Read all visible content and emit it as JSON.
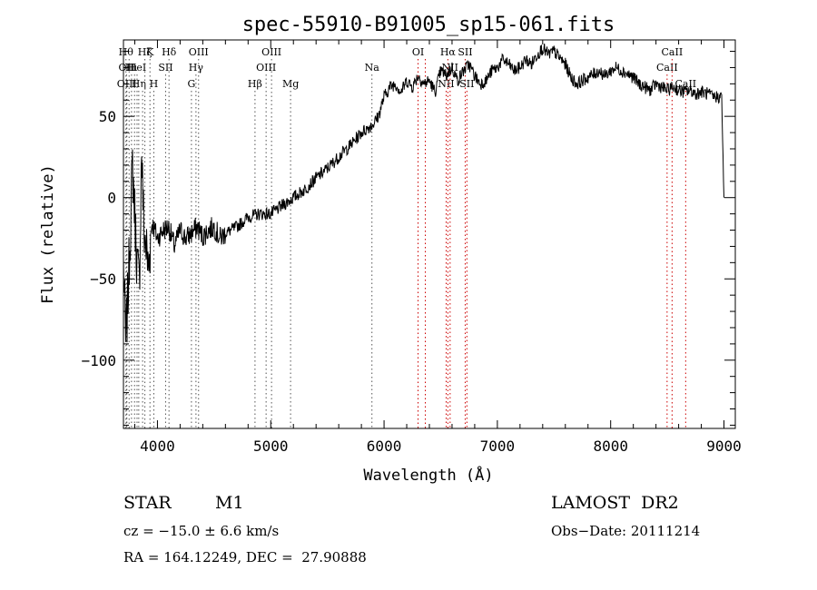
{
  "chart_data": {
    "type": "line",
    "title": "spec-55910-B91005_sp15-061.fits",
    "xlabel": "Wavelength (Å)",
    "ylabel": "Flux (relative)",
    "xlim": [
      3700,
      9100
    ],
    "ylim": [
      -142,
      97
    ],
    "xticks": [
      4000,
      5000,
      6000,
      7000,
      8000,
      9000
    ],
    "yticks": [
      -100,
      -50,
      0,
      50
    ],
    "grid": false,
    "line_color": "#000000",
    "marker_color": "#cc0000",
    "series": [
      {
        "values_x": [
          3700,
          3720,
          3740,
          3760,
          3780,
          3800,
          3820,
          3840,
          3860,
          3880,
          3900,
          3920,
          3950,
          4000,
          4050,
          4100,
          4150,
          4200,
          4250,
          4300,
          4350,
          4400,
          4450,
          4500,
          4550,
          4600,
          4700,
          4800,
          4900,
          5000,
          5100,
          5200,
          5300,
          5400,
          5500,
          5600,
          5700,
          5800,
          5900,
          5950,
          6000,
          6050,
          6100,
          6150,
          6200,
          6250,
          6300,
          6350,
          6400,
          6450,
          6500,
          6550,
          6600,
          6650,
          6700,
          6750,
          6800,
          6850,
          6900,
          6950,
          7000,
          7050,
          7100,
          7150,
          7200,
          7250,
          7300,
          7350,
          7400,
          7450,
          7500,
          7550,
          7600,
          7650,
          7700,
          7750,
          7800,
          7850,
          7900,
          7950,
          8000,
          8050,
          8100,
          8150,
          8200,
          8250,
          8300,
          8350,
          8400,
          8450,
          8500,
          8550,
          8600,
          8650,
          8700,
          8750,
          8800,
          8850,
          8900,
          8950,
          8980,
          9000
        ],
        "values_y": [
          -40,
          -90,
          -60,
          -20,
          20,
          -10,
          -40,
          -55,
          30,
          -20,
          -30,
          -45,
          -15,
          -25,
          -20,
          -18,
          -30,
          -20,
          -25,
          -22,
          -18,
          -24,
          -20,
          -18,
          -25,
          -22,
          -18,
          -12,
          -10,
          -10,
          -5,
          0,
          5,
          12,
          18,
          25,
          32,
          40,
          45,
          50,
          62,
          68,
          70,
          65,
          72,
          68,
          75,
          70,
          72,
          65,
          78,
          75,
          80,
          72,
          78,
          82,
          75,
          70,
          72,
          78,
          80,
          85,
          82,
          78,
          80,
          85,
          82,
          88,
          92,
          88,
          90,
          86,
          82,
          74,
          70,
          72,
          74,
          76,
          78,
          75,
          78,
          80,
          78,
          76,
          74,
          70,
          68,
          66,
          70,
          68,
          66,
          68,
          66,
          65,
          66,
          64,
          65,
          64,
          62,
          62,
          62,
          0
        ]
      }
    ],
    "line_markers": [
      {
        "x": 3722,
        "label": "Hθ",
        "row": 0
      },
      {
        "x": 3727,
        "label": "OII",
        "row": 1
      },
      {
        "x": 3730,
        "label": "OIII",
        "row": 2
      },
      {
        "x": 3750,
        "label": "",
        "row": 0
      },
      {
        "x": 3771,
        "label": "Hι",
        "row": 1
      },
      {
        "x": 3798,
        "label": "",
        "row": 1
      },
      {
        "x": 3820,
        "label": "HeI",
        "row": 1
      },
      {
        "x": 3835,
        "label": "Hη",
        "row": 2
      },
      {
        "x": 3869,
        "label": "",
        "row": 2
      },
      {
        "x": 3889,
        "label": "Hζ",
        "row": 0
      },
      {
        "x": 3934,
        "label": "K",
        "row": 0
      },
      {
        "x": 3968,
        "label": "H",
        "row": 2
      },
      {
        "x": 4072,
        "label": "SII",
        "row": 1
      },
      {
        "x": 4102,
        "label": "Hδ",
        "row": 0
      },
      {
        "x": 4300,
        "label": "G",
        "row": 2
      },
      {
        "x": 4340,
        "label": "Hγ",
        "row": 1
      },
      {
        "x": 4363,
        "label": "OIII",
        "row": 0
      },
      {
        "x": 4861,
        "label": "Hβ",
        "row": 2
      },
      {
        "x": 4959,
        "label": "OIII",
        "row": 1
      },
      {
        "x": 5007,
        "label": "OIII",
        "row": 0
      },
      {
        "x": 5175,
        "label": "Mg",
        "row": 2
      },
      {
        "x": 5893,
        "label": "Na",
        "row": 1
      },
      {
        "x": 6300,
        "label": "OI",
        "row": 0
      },
      {
        "x": 6364,
        "label": "",
        "row": 0
      },
      {
        "x": 6548,
        "label": "NII",
        "row": 2
      },
      {
        "x": 6563,
        "label": "Hα",
        "row": 0
      },
      {
        "x": 6583,
        "label": "NII",
        "row": 1
      },
      {
        "x": 6716,
        "label": "SII",
        "row": 0
      },
      {
        "x": 6731,
        "label": "SII",
        "row": 2
      },
      {
        "x": 8498,
        "label": "CaII",
        "row": 1
      },
      {
        "x": 8542,
        "label": "CaII",
        "row": 0
      },
      {
        "x": 8662,
        "label": "CaII",
        "row": 2
      }
    ]
  },
  "info": {
    "object_class": "STAR",
    "subclass": "M1",
    "survey": "LAMOST  DR2",
    "cz": "cz = −15.0 ± 6.6 km/s",
    "obs_date": "Obs−Date: 20111214",
    "coords": "RA = 164.12249, DEC =  27.90888"
  }
}
